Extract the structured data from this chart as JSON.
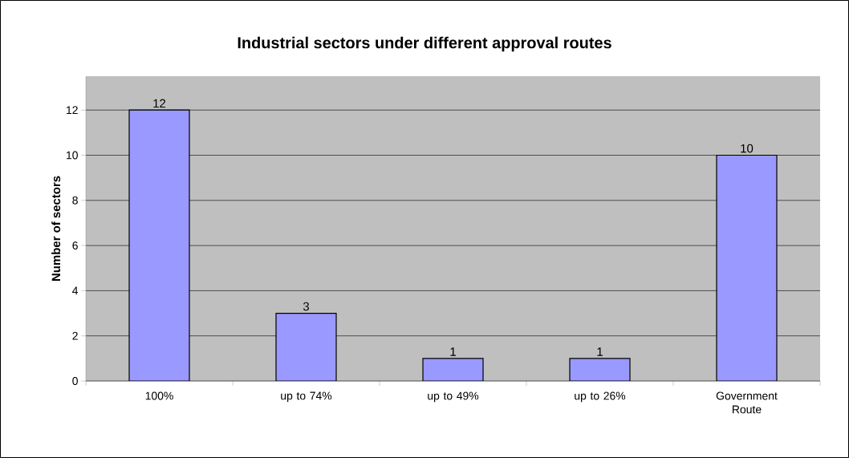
{
  "chart_data": {
    "type": "bar",
    "title": "Industrial sectors under different approval routes",
    "ylabel": "Number of sectors",
    "categories": [
      "100%",
      "up to 74%",
      "up to 49%",
      "up to 26%",
      "Government Route"
    ],
    "values": [
      12,
      3,
      1,
      1,
      10
    ],
    "color": "#9999ff",
    "ylim": [
      0,
      13.5
    ],
    "yticks": [
      0,
      2,
      4,
      6,
      8,
      10,
      12
    ],
    "grid": "y",
    "data_labels": true
  }
}
